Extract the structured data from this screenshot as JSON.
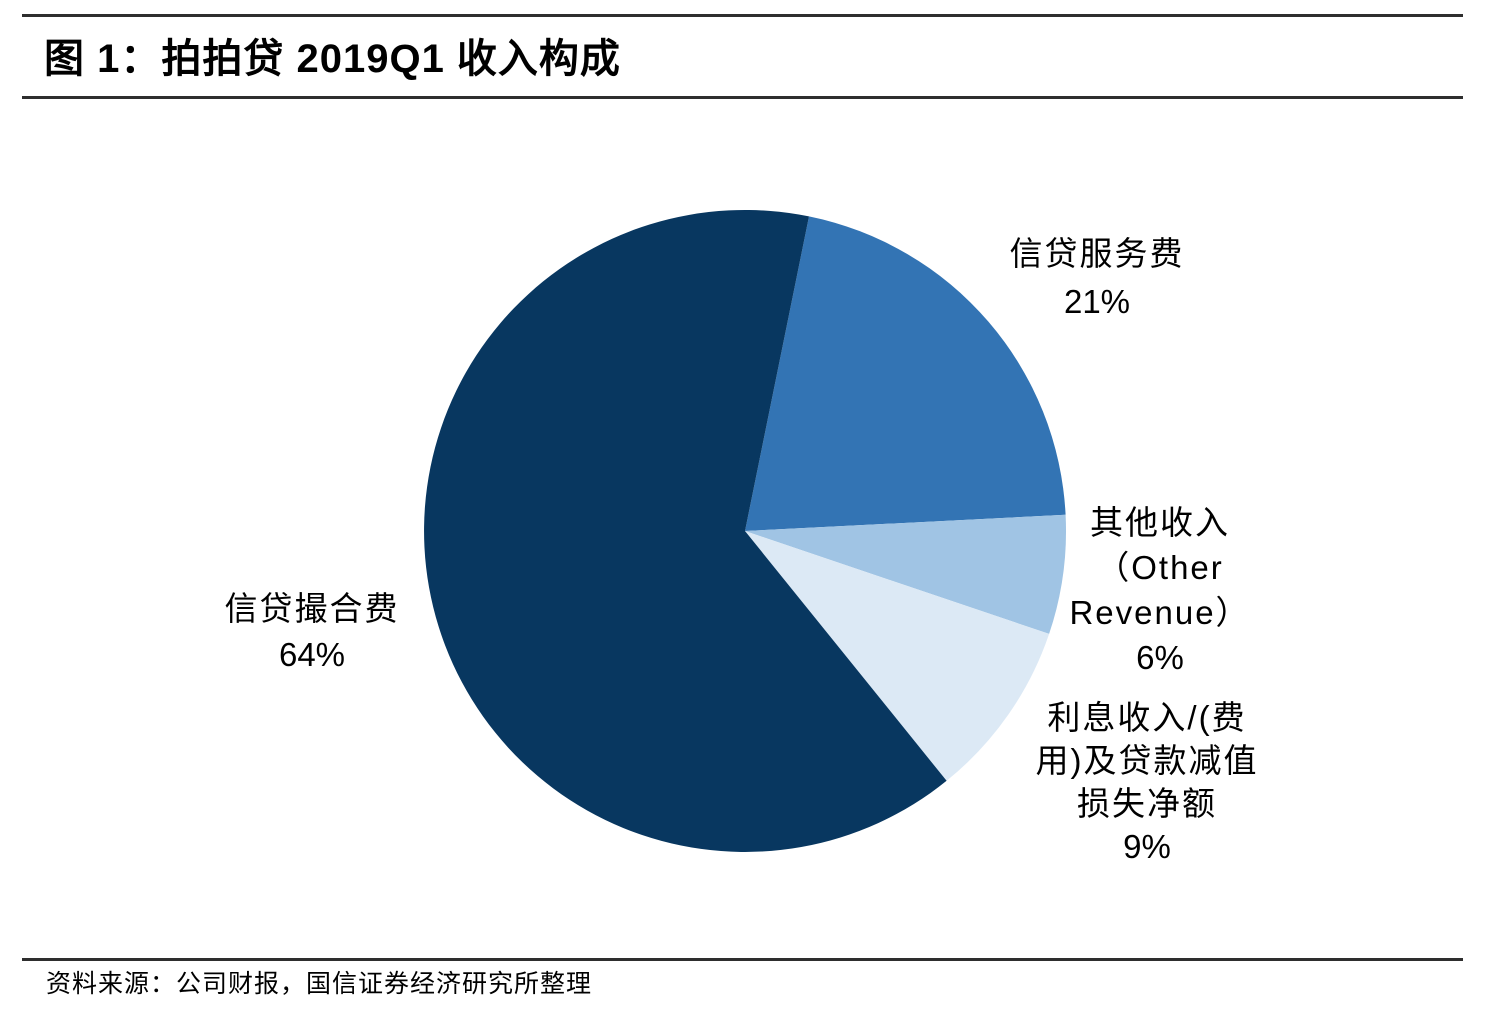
{
  "header": {
    "title": "图 1：拍拍贷 2019Q1 收入构成"
  },
  "footer": {
    "source": "资料来源：公司财报，国信证券经济研究所整理"
  },
  "colors": {
    "background": "#ffffff",
    "rule": "#2e2e2e",
    "text": "#000000",
    "slice_dark_navy": "#083760",
    "slice_medium_blue": "#3374B4",
    "slice_light_blue": "#A0C4E4",
    "slice_pale_blue": "#DCE9F5"
  },
  "labels": {
    "credit_service_fee": {
      "lines": [
        "信贷服务费",
        "21%"
      ]
    },
    "other_revenue": {
      "lines": [
        "其他收入",
        "（Other",
        "Revenue）",
        "6%"
      ]
    },
    "interest_net": {
      "lines": [
        "利息收入/(费",
        "用)及贷款减值",
        "损失净额",
        "9%"
      ]
    },
    "loan_facilitation_fee": {
      "lines": [
        "信贷撮合费",
        "64%"
      ]
    }
  },
  "chart_data": {
    "type": "pie",
    "title": "图 1：拍拍贷 2019Q1 收入构成",
    "source_note": "资料来源：公司财报，国信证券经济研究所整理",
    "start_angle_deg": 11.5,
    "direction": "clockwise",
    "labels_position": "outside",
    "slices": [
      {
        "id": "credit-service-fee",
        "label": "信贷服务费",
        "percent": 21,
        "color": "#3374B4"
      },
      {
        "id": "other-revenue",
        "label": "其他收入（Other Revenue）",
        "percent": 6,
        "color": "#A0C4E4"
      },
      {
        "id": "interest-income-net-of-loan-provision",
        "label": "利息收入/(费用)及贷款减值损失净额",
        "percent": 9,
        "color": "#DCE9F5"
      },
      {
        "id": "loan-facilitation-fee",
        "label": "信贷撮合费",
        "percent": 64,
        "color": "#083760"
      }
    ]
  }
}
